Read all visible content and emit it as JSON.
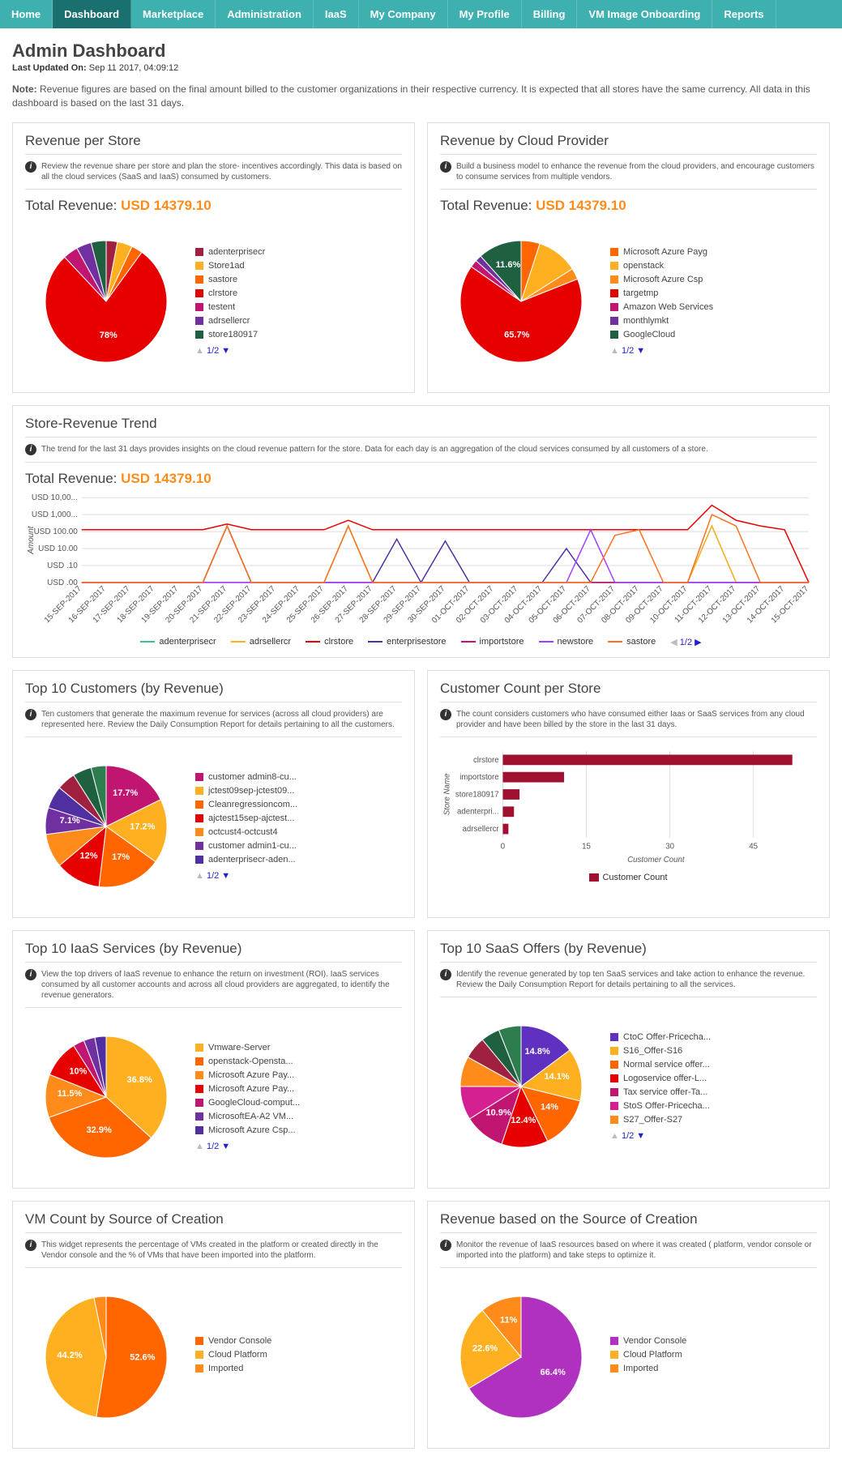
{
  "nav": {
    "items": [
      "Home",
      "Dashboard",
      "Marketplace",
      "Administration",
      "IaaS",
      "My Company",
      "My Profile",
      "Billing",
      "VM Image Onboarding",
      "Reports"
    ],
    "active": 1
  },
  "header": {
    "title": "Admin Dashboard",
    "updated_label": "Last Updated On:",
    "updated_value": "Sep 11 2017, 04:09:12",
    "note_label": "Note:",
    "note_text": "Revenue figures are based on the final amount billed to the customer organizations in their respective currency. It is expected that all stores have the same currency. All data in this dashboard is based on the last 31 days."
  },
  "pager_text": "1/2",
  "pager2_text": "1/2",
  "revenue_per_store": {
    "title": "Revenue per Store",
    "desc": "Review the revenue share per store and plan the store- incentives accordingly. This data is based on all the cloud services (SaaS and IaaS) consumed by customers.",
    "total_label": "Total Revenue:",
    "total_value": "USD 14379.10",
    "slices": [
      {
        "label": "adenterprisecr",
        "value": 3,
        "color": "#a02040"
      },
      {
        "label": "Store1ad",
        "value": 4,
        "color": "#ffb020"
      },
      {
        "label": "sastore",
        "value": 3,
        "color": "#ff6600"
      },
      {
        "label": "clrstore",
        "value": 78,
        "color": "#e60000",
        "text": "78%"
      },
      {
        "label": "testent",
        "value": 4,
        "color": "#c01570"
      },
      {
        "label": "adrsellercr",
        "value": 4,
        "color": "#7030a0"
      },
      {
        "label": "store180917",
        "value": 4,
        "color": "#1e6040"
      }
    ]
  },
  "revenue_by_cloud": {
    "title": "Revenue by Cloud Provider",
    "desc": "Build a business model to enhance the revenue from the cloud providers, and encourage customers to consume services from multiple vendors.",
    "total_label": "Total Revenue:",
    "total_value": "USD 14379.10",
    "slices": [
      {
        "label": "Microsoft Azure Payg",
        "value": 5,
        "color": "#ff6600"
      },
      {
        "label": "openstack",
        "value": 11,
        "color": "#ffb020"
      },
      {
        "label": "Microsoft Azure Csp",
        "value": 3,
        "color": "#ff8c1a"
      },
      {
        "label": "targetmp",
        "value": 65.7,
        "color": "#e60000",
        "text": "65.7%"
      },
      {
        "label": "Amazon Web Services",
        "value": 2,
        "color": "#c01570"
      },
      {
        "label": "monthlymkt",
        "value": 1.7,
        "color": "#7030a0"
      },
      {
        "label": "GoogleCloud",
        "value": 11.6,
        "color": "#1e6040",
        "text": "11.6%"
      }
    ]
  },
  "trend": {
    "title": "Store-Revenue Trend",
    "desc": "The trend for the last 31 days provides insights on the cloud revenue pattern for the store. Data for each day is an aggregation of the cloud services consumed by all customers of a store.",
    "total_label": "Total Revenue:",
    "total_value": "USD 14379.10",
    "y_label": "Amount",
    "y_ticks": [
      "USD 10,00...",
      "USD 1,000...",
      "USD 100.00",
      "USD 10.00",
      "USD .10",
      "USD .00"
    ],
    "x_ticks": [
      "15-SEP-2017",
      "16-SEP-2017",
      "17-SEP-2017",
      "18-SEP-2017",
      "19-SEP-2017",
      "20-SEP-2017",
      "21-SEP-2017",
      "22-SEP-2017",
      "23-SEP-2017",
      "24-SEP-2017",
      "25-SEP-2017",
      "26-SEP-2017",
      "27-SEP-2017",
      "28-SEP-2017",
      "29-SEP-2017",
      "30-SEP-2017",
      "01-OCT-2017",
      "02-OCT-2017",
      "03-OCT-2017",
      "04-OCT-2017",
      "05-OCT-2017",
      "06-OCT-2017",
      "07-OCT-2017",
      "08-OCT-2017",
      "09-OCT-2017",
      "10-OCT-2017",
      "11-OCT-2017",
      "12-OCT-2017",
      "13-OCT-2017",
      "14-OCT-2017",
      "15-OCT-2017"
    ],
    "series": [
      {
        "name": "adenterprisecr",
        "color": "#40c090",
        "values": [
          0,
          0,
          0,
          0,
          0,
          0,
          3,
          0,
          0,
          0,
          0,
          3,
          0,
          0,
          0,
          0,
          0,
          0,
          0,
          0,
          0,
          0,
          0,
          0,
          0,
          0,
          3,
          0,
          0,
          0,
          0
        ]
      },
      {
        "name": "adrsellercr",
        "color": "#ffb020",
        "values": [
          0,
          0,
          0,
          0,
          0,
          0,
          3,
          0,
          0,
          0,
          0,
          3,
          0,
          0,
          0,
          0,
          0,
          0,
          0,
          0,
          0,
          0,
          0,
          0,
          0,
          0,
          3,
          0,
          0,
          0,
          0
        ]
      },
      {
        "name": "clrstore",
        "color": "#e60000",
        "values": [
          2.8,
          2.8,
          2.8,
          2.8,
          2.8,
          2.8,
          3.1,
          2.8,
          2.8,
          2.8,
          2.8,
          3.3,
          2.8,
          2.8,
          2.8,
          2.8,
          2.8,
          2.8,
          2.8,
          2.8,
          2.8,
          2.8,
          2.8,
          2.8,
          2.8,
          2.8,
          4.1,
          3.3,
          3.0,
          2.8,
          0
        ]
      },
      {
        "name": "enterprisestore",
        "color": "#5030a0",
        "values": [
          0,
          0,
          0,
          0,
          0,
          0,
          3,
          0,
          0,
          0,
          0,
          0,
          0,
          2.3,
          0,
          2.2,
          0,
          0,
          0,
          0,
          1.8,
          0,
          0,
          0,
          0,
          0,
          0,
          0,
          0,
          0,
          0
        ]
      },
      {
        "name": "importstore",
        "color": "#c01570",
        "values": [
          0,
          0,
          0,
          0,
          0,
          0,
          0,
          0,
          0,
          0,
          0,
          0,
          0,
          0,
          0,
          0,
          0,
          0,
          0,
          0,
          0,
          0,
          0,
          0,
          0,
          0,
          0,
          0,
          0,
          0,
          0
        ]
      },
      {
        "name": "newstore",
        "color": "#a040ff",
        "values": [
          0,
          0,
          0,
          0,
          0,
          0,
          0,
          0,
          0,
          0,
          0,
          0,
          0,
          0,
          0,
          0,
          0,
          0,
          0,
          0,
          0,
          2.8,
          0,
          0,
          0,
          0,
          0,
          0,
          0,
          0,
          0
        ]
      },
      {
        "name": "sastore",
        "color": "#ff7020",
        "values": [
          0,
          0,
          0,
          0,
          0,
          0,
          3,
          0,
          0,
          0,
          0,
          3,
          0,
          0,
          0,
          0,
          0,
          0,
          0,
          0,
          0,
          0,
          2.5,
          2.8,
          0,
          0,
          3.6,
          3.0,
          0,
          0,
          0
        ]
      }
    ]
  },
  "top_customers": {
    "title": "Top 10 Customers (by Revenue)",
    "desc": "Ten customers that generate the maximum revenue for services (across all cloud providers) are represented here. Review the Daily Consumption Report for details pertaining to all the customers.",
    "slices": [
      {
        "label": "customer admin8-cu...",
        "value": 17.7,
        "color": "#c01570",
        "text": "17.7%"
      },
      {
        "label": "jctest09sep-jctest09...",
        "value": 17.2,
        "color": "#ffb020",
        "text": "17.2%"
      },
      {
        "label": "Cleanregressioncom...",
        "value": 17,
        "color": "#ff6600",
        "text": "17%"
      },
      {
        "label": "ajctest15sep-ajctest...",
        "value": 12,
        "color": "#e60000",
        "text": "12%"
      },
      {
        "label": "octcust4-octcust4",
        "value": 9,
        "color": "#ff8c1a"
      },
      {
        "label": "customer admin1-cu...",
        "value": 7.1,
        "color": "#7030a0",
        "text": "7.1%"
      },
      {
        "label": "adenterprisecr-aden...",
        "value": 6,
        "color": "#5030a0"
      },
      {
        "label": "",
        "value": 5,
        "color": "#a02040"
      },
      {
        "label": "",
        "value": 5,
        "color": "#1e6040"
      },
      {
        "label": "",
        "value": 4,
        "color": "#2e7d4e"
      }
    ]
  },
  "customer_count": {
    "title": "Customer Count per Store",
    "desc": "The count considers customers who have consumed either Iaas or SaaS services from any cloud provider and have been billed by the store in the last 31 days.",
    "y_label": "Store Name",
    "x_label": "Customer Count",
    "legend": "Customer Count",
    "color": "#a01030",
    "bars": [
      {
        "label": "clrstore",
        "value": 52
      },
      {
        "label": "importstore",
        "value": 11
      },
      {
        "label": "store180917",
        "value": 3
      },
      {
        "label": "adenterpri...",
        "value": 2
      },
      {
        "label": "adrsellercr",
        "value": 1
      }
    ],
    "x_ticks": [
      0,
      15,
      30,
      45
    ]
  },
  "top_iaas": {
    "title": "Top 10 IaaS Services (by Revenue)",
    "desc": "View the top drivers of IaaS revenue to enhance the return on investment (ROI). IaaS services consumed by all customer accounts and across all cloud providers are aggregated, to identify the revenue generators.",
    "slices": [
      {
        "label": "Vmware-Server",
        "value": 36.8,
        "color": "#ffb020",
        "text": "36.8%"
      },
      {
        "label": "openstack-Opensta...",
        "value": 32.9,
        "color": "#ff6600",
        "text": "32.9%"
      },
      {
        "label": "Microsoft Azure Pay...",
        "value": 11.5,
        "color": "#ff8c1a",
        "text": "11.5%"
      },
      {
        "label": "Microsoft Azure Pay...",
        "value": 10,
        "color": "#e60000",
        "text": "10%"
      },
      {
        "label": "GoogleCloud-comput...",
        "value": 3,
        "color": "#c01570"
      },
      {
        "label": "MicrosoftEA-A2 VM...",
        "value": 3,
        "color": "#7030a0"
      },
      {
        "label": "Microsoft Azure Csp...",
        "value": 3,
        "color": "#5030a0"
      }
    ]
  },
  "top_saas": {
    "title": "Top 10 SaaS Offers (by Revenue)",
    "desc": "Identify the revenue generated by top ten SaaS services and take action to enhance the revenue. Review the Daily Consumption Report for details pertaining to all the services.",
    "slices": [
      {
        "label": "CtoC Offer-Pricecha...",
        "value": 14.8,
        "color": "#6030c0",
        "text": "14.8%"
      },
      {
        "label": "S16_Offer-S16",
        "value": 14.1,
        "color": "#ffb020",
        "text": "14.1%"
      },
      {
        "label": "Normal service offer...",
        "value": 14,
        "color": "#ff6600",
        "text": "14%"
      },
      {
        "label": "Logoservice offer-L...",
        "value": 12.4,
        "color": "#e60000",
        "text": "12.4%"
      },
      {
        "label": "Tax service offer-Ta...",
        "value": 10.9,
        "color": "#c01570",
        "text": "10.9%"
      },
      {
        "label": "StoS Offer-Pricecha...",
        "value": 9,
        "color": "#d42090"
      },
      {
        "label": "S27_Offer-S27",
        "value": 8,
        "color": "#ff8c1a"
      },
      {
        "label": "",
        "value": 6,
        "color": "#a02040"
      },
      {
        "label": "",
        "value": 5,
        "color": "#1e6040"
      },
      {
        "label": "",
        "value": 6,
        "color": "#2e7d4e"
      }
    ]
  },
  "vm_count": {
    "title": "VM Count by Source of Creation",
    "desc": "This widget represents the percentage of VMs created in the platform or created directly in the Vendor console and the % of VMs that have been imported into the platform.",
    "slices": [
      {
        "label": "Vendor Console",
        "value": 52.6,
        "color": "#ff6600",
        "text": "52.6%"
      },
      {
        "label": "Cloud Platform",
        "value": 44.2,
        "color": "#ffb020",
        "text": "44.2%"
      },
      {
        "label": "Imported",
        "value": 3.2,
        "color": "#ff8c1a"
      }
    ]
  },
  "revenue_source": {
    "title": "Revenue based on the Source of Creation",
    "desc": "Monitor the revenue of IaaS resources based on where it was created ( platform, vendor console or imported into the platform) and take steps to optimize it.",
    "slices": [
      {
        "label": "Vendor Console",
        "value": 66.4,
        "color": "#b030c0",
        "text": "66.4%"
      },
      {
        "label": "Cloud Platform",
        "value": 22.6,
        "color": "#ffb020",
        "text": "22.6%"
      },
      {
        "label": "Imported",
        "value": 11,
        "color": "#ff8c1a",
        "text": "11%"
      }
    ]
  }
}
